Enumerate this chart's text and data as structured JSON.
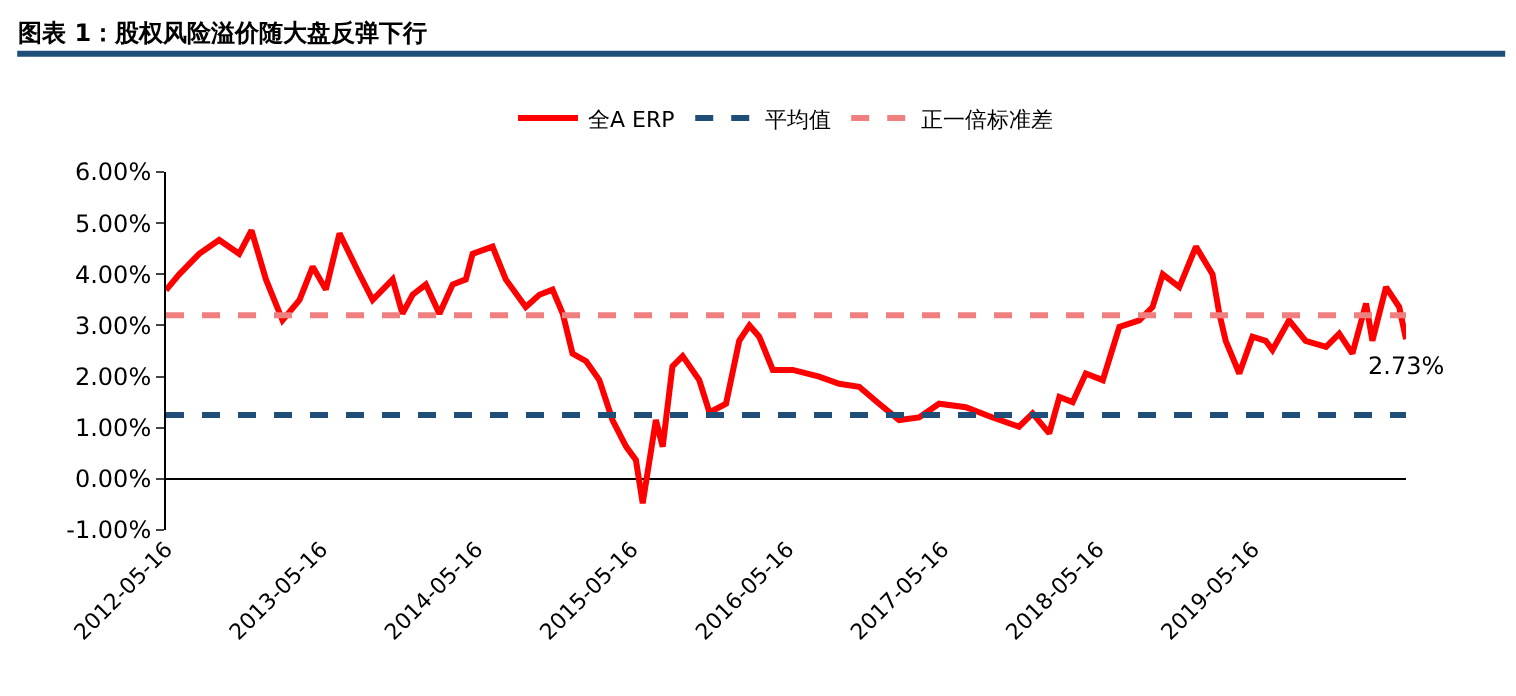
{
  "chart_data": {
    "type": "line",
    "title": "图表 1：股权风险溢价随大盘反弹下行",
    "x": [
      "2012-05-16",
      "2012-06-16",
      "2012-08-02",
      "2012-09-18",
      "2012-11-04",
      "2012-12-03",
      "2013-01-06",
      "2013-02-14",
      "2013-03-26",
      "2013-04-26",
      "2013-05-27",
      "2013-06-28",
      "2013-08-14",
      "2013-09-14",
      "2013-10-31",
      "2013-11-23",
      "2013-12-17",
      "2014-01-17",
      "2014-02-18",
      "2014-03-21",
      "2014-04-21",
      "2014-05-07",
      "2014-06-23",
      "2014-07-24",
      "2014-09-09",
      "2014-10-11",
      "2014-11-11",
      "2014-12-05",
      "2014-12-28",
      "2015-01-29",
      "2015-03-01",
      "2015-04-01",
      "2015-05-03",
      "2015-05-26",
      "2015-06-11",
      "2015-07-12",
      "2015-07-28",
      "2015-08-20",
      "2015-09-13",
      "2015-10-22",
      "2015-11-15",
      "2015-12-24",
      "2016-01-24",
      "2016-02-17",
      "2016-03-11",
      "2016-04-12",
      "2016-05-29",
      "2016-07-30",
      "2016-09-15",
      "2016-11-01",
      "2016-12-18",
      "2017-02-03",
      "2017-03-22",
      "2017-05-08",
      "2017-07-10",
      "2017-09-11",
      "2017-11-12",
      "2017-12-14",
      "2018-01-22",
      "2018-02-15",
      "2018-03-18",
      "2018-04-18",
      "2018-05-28",
      "2018-07-06",
      "2018-08-22",
      "2018-09-22",
      "2018-10-16",
      "2018-11-24",
      "2019-01-02",
      "2019-02-10",
      "2019-02-26",
      "2019-03-13",
      "2019-04-14",
      "2019-05-15",
      "2019-06-15",
      "2019-07-01",
      "2019-08-09",
      "2019-09-17",
      "2019-11-04",
      "2019-12-05",
      "2020-01-05",
      "2020-02-06",
      "2020-02-21",
      "2020-03-24",
      "2020-04-24",
      "2020-05-10"
    ],
    "series": [
      {
        "name": "全A ERP",
        "color": "#ff0000",
        "values": [
          3.69,
          4.0,
          4.4,
          4.67,
          4.4,
          4.86,
          3.9,
          3.1,
          3.5,
          4.15,
          3.7,
          4.8,
          4.0,
          3.5,
          3.9,
          3.23,
          3.6,
          3.8,
          3.23,
          3.8,
          3.9,
          4.4,
          4.54,
          3.9,
          3.36,
          3.6,
          3.7,
          3.23,
          2.45,
          2.3,
          1.93,
          1.15,
          0.63,
          0.37,
          -0.48,
          1.15,
          0.63,
          2.2,
          2.4,
          1.93,
          1.3,
          1.47,
          2.7,
          3.0,
          2.78,
          2.13,
          2.13,
          2.0,
          1.86,
          1.8,
          1.47,
          1.15,
          1.2,
          1.47,
          1.4,
          1.2,
          1.02,
          1.28,
          0.89,
          1.6,
          1.5,
          2.06,
          1.93,
          2.97,
          3.1,
          3.36,
          4.0,
          3.75,
          4.54,
          4.0,
          3.23,
          2.7,
          2.06,
          2.78,
          2.7,
          2.52,
          3.1,
          2.7,
          2.58,
          2.84,
          2.45,
          3.43,
          2.7,
          3.75,
          3.36,
          2.73
        ]
      }
    ],
    "ref_lines": [
      {
        "axis": "y",
        "value": 1.25,
        "label": "平均值",
        "color": "#1f4e79",
        "line_style": "dashed"
      },
      {
        "axis": "y",
        "value": 3.2,
        "label": "正一倍标准差",
        "color": "#f08080",
        "line_style": "dashed"
      }
    ],
    "annotations": [
      {
        "text": "2.73%",
        "x": "2020-05-10",
        "y": 2.73
      }
    ],
    "xlim": [
      "2012-05-16",
      "2020-05-10"
    ],
    "xticks": [
      "2012-05-16",
      "2013-05-16",
      "2014-05-16",
      "2015-05-16",
      "2016-05-16",
      "2017-05-16",
      "2018-05-16",
      "2019-05-16"
    ],
    "ylim": [
      -1,
      6
    ],
    "yticks": [
      {
        "value": -1,
        "label": "-1.00%"
      },
      {
        "value": 0,
        "label": "0.00%"
      },
      {
        "value": 1,
        "label": "1.00%"
      },
      {
        "value": 2,
        "label": "2.00%"
      },
      {
        "value": 3,
        "label": "3.00%"
      },
      {
        "value": 4,
        "label": "4.00%"
      },
      {
        "value": 5,
        "label": "5.00%"
      },
      {
        "value": 6,
        "label": "6.00%"
      }
    ],
    "legend": "top",
    "marker": "none",
    "line_style": "solid"
  }
}
